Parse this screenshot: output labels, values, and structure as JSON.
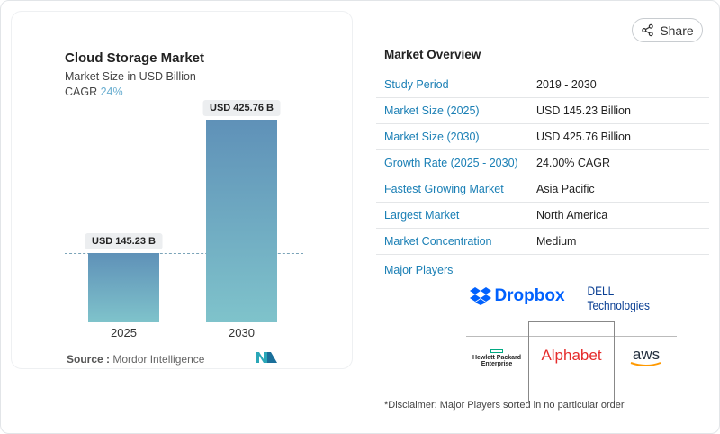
{
  "header": {
    "share_label": "Share"
  },
  "chart_card": {
    "title": "Cloud Storage Market",
    "subtitle": "Market Size in USD Billion",
    "cagr_label": "CAGR",
    "cagr_value": "24%",
    "source_label": "Source :",
    "source_value": "Mordor Intelligence"
  },
  "chart_data": {
    "type": "bar",
    "categories": [
      "2025",
      "2030"
    ],
    "values": [
      145.23,
      425.76
    ],
    "data_labels": [
      "USD 145.23 B",
      "USD 425.76 B"
    ],
    "title": "Cloud Storage Market",
    "ylabel": "Market Size in USD Billion",
    "colors": [
      "#5f91b8",
      "#7fc3cb"
    ]
  },
  "overview": {
    "title": "Market Overview",
    "rows": [
      {
        "label": "Study Period",
        "value": "2019 - 2030"
      },
      {
        "label": "Market Size (2025)",
        "value": "USD 145.23 Billion"
      },
      {
        "label": "Market Size (2030)",
        "value": "USD 425.76 Billion"
      },
      {
        "label": "Growth Rate (2025 - 2030)",
        "value": "24.00% CAGR"
      },
      {
        "label": "Fastest Growing Market",
        "value": "Asia Pacific"
      },
      {
        "label": "Largest Market",
        "value": "North America"
      },
      {
        "label": "Market Concentration",
        "value": "Medium"
      }
    ],
    "major_players_label": "Major Players",
    "players": [
      "Dropbox",
      "DELL Technologies",
      "Hewlett Packard Enterprise",
      "Alphabet",
      "aws"
    ],
    "disclaimer": "*Disclaimer: Major Players sorted in no particular order"
  }
}
